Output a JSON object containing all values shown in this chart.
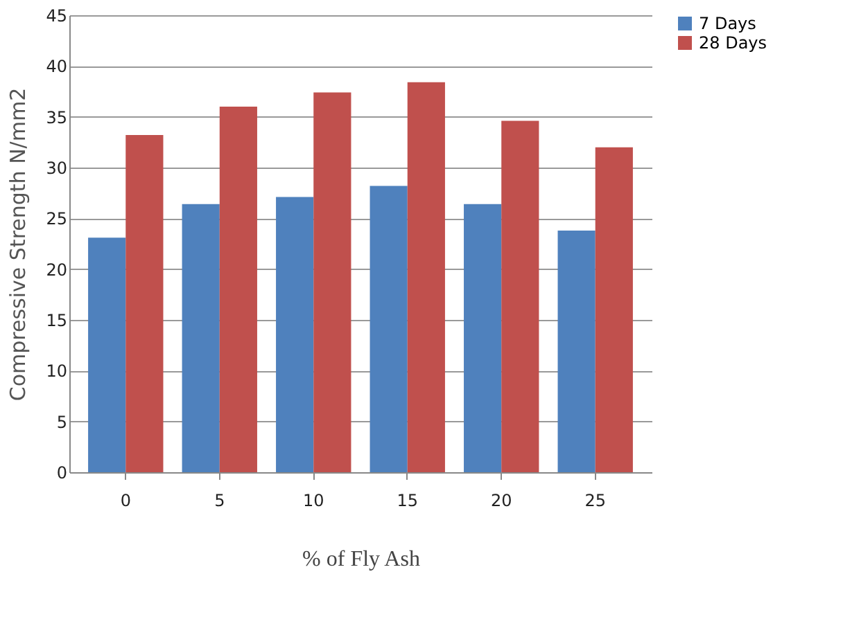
{
  "chart_data": {
    "type": "bar",
    "xlabel": "% of Fly Ash",
    "ylabel": "Compressive Strength N/mm2",
    "categories": [
      "0",
      "5",
      "10",
      "15",
      "20",
      "25"
    ],
    "series": [
      {
        "name": "7 Days",
        "color": "#4f81bd",
        "values": [
          23.1,
          26.4,
          27.1,
          28.2,
          26.4,
          23.8
        ]
      },
      {
        "name": "28 Days",
        "color": "#c0504d",
        "values": [
          33.2,
          36.0,
          37.4,
          38.4,
          34.6,
          32.0
        ]
      }
    ],
    "ylim": [
      0,
      45
    ],
    "yticks": [
      0,
      5,
      10,
      15,
      20,
      25,
      30,
      35,
      40,
      45
    ],
    "grid": "y",
    "legend": "right"
  }
}
